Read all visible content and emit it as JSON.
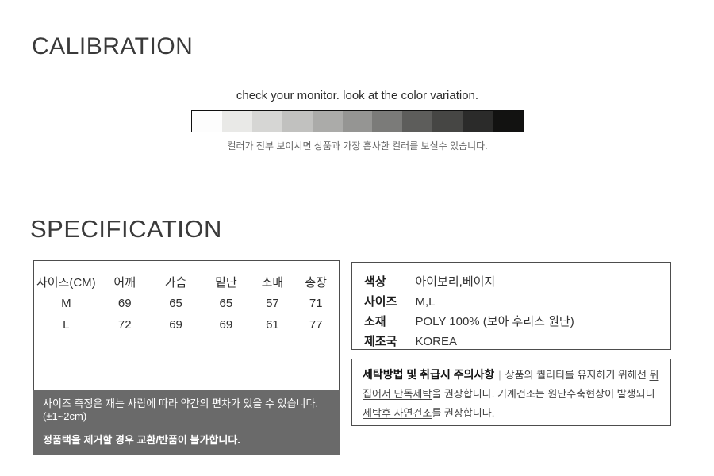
{
  "calibration": {
    "title": "CALIBRATION",
    "instruction": "check your monitor. look at the color variation.",
    "caption": "컬러가 전부 보이시면 상품과 가장 흡사한 컬러를 보실수 있습니다.",
    "strip_colors": [
      "#fdfdfd",
      "#e9e9e7",
      "#d6d6d4",
      "#c1c1bf",
      "#ababa9",
      "#959593",
      "#7b7b79",
      "#5d5d5b",
      "#464644",
      "#2b2b2a",
      "#121211"
    ]
  },
  "specification": {
    "title": "SPECIFICATION",
    "size_table": {
      "headers": [
        "사이즈(CM)",
        "어깨",
        "가슴",
        "밑단",
        "소매",
        "총장"
      ],
      "rows": [
        [
          "M",
          "69",
          "65",
          "65",
          "57",
          "71"
        ],
        [
          "L",
          "72",
          "69",
          "69",
          "61",
          "77"
        ]
      ]
    },
    "size_notice": {
      "bg": "#6a6a6a",
      "line1": "사이즈 측정은 재는 사람에 따라 약간의 편차가 있을 수 있습니다.",
      "line2": "(±1~2cm)",
      "line3": "정품택을 제거할 경우 교환/반품이 불가합니다."
    },
    "product_info": {
      "rows": [
        {
          "label": "색상",
          "value": "아이보리,베이지"
        },
        {
          "label": "사이즈",
          "value": "M,L"
        },
        {
          "label": "소재",
          "value": "POLY 100% (보아 후리스 원단)"
        },
        {
          "label": "제조국",
          "value": "KOREA"
        }
      ]
    },
    "care": {
      "heading": "세탁방법 및 취급시 주의사항",
      "divider": "|",
      "text1": "상품의 퀄리티를 유지하기 위해선 ",
      "underline1": "뒤집어서 단독세탁",
      "text2": "을 권장합니다. 기계건조는 원단수축현상이 발생되니 ",
      "underline2": "세탁후 자연건조",
      "text3": "를 권장합니다."
    }
  }
}
